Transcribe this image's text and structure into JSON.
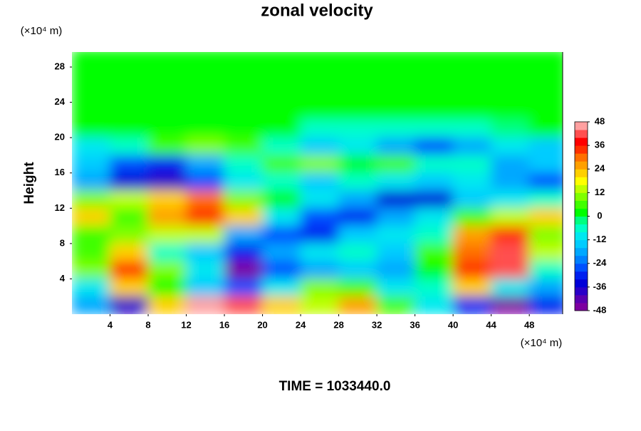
{
  "chart_data": {
    "type": "heatmap",
    "title": "zonal velocity",
    "y_unit": "(×10⁴ m)",
    "x_unit": "(×10⁴ m)",
    "ylabel": "Height",
    "footer": "TIME = 1033440.0",
    "x": [
      2,
      6,
      10,
      14,
      18,
      22,
      26,
      30,
      34,
      38,
      42,
      46,
      50
    ],
    "y": [
      29,
      27,
      25,
      23,
      21,
      19,
      17,
      15,
      13,
      11,
      9,
      7,
      5,
      3,
      1
    ],
    "z": [
      [
        0,
        0,
        0,
        0,
        0,
        0,
        0,
        0,
        0,
        0,
        0,
        0,
        0
      ],
      [
        0,
        0,
        0,
        0,
        0,
        0,
        0,
        0,
        0,
        0,
        0,
        0,
        0
      ],
      [
        0,
        0,
        0,
        0,
        0,
        0,
        0,
        0,
        0,
        0,
        0,
        0,
        0
      ],
      [
        0,
        0,
        0,
        0,
        0,
        0,
        0,
        0,
        0,
        0,
        0,
        0,
        0
      ],
      [
        2,
        2,
        2,
        2,
        2,
        0,
        -5,
        -5,
        -5,
        -8,
        -8,
        -3,
        0
      ],
      [
        -10,
        -5,
        5,
        10,
        5,
        -5,
        -15,
        -10,
        -20,
        -28,
        -20,
        -10,
        -15
      ],
      [
        -15,
        -25,
        -30,
        -20,
        -5,
        5,
        10,
        0,
        5,
        -5,
        -5,
        -20,
        -15
      ],
      [
        -20,
        -35,
        -38,
        -25,
        -10,
        -5,
        -15,
        -5,
        -10,
        -15,
        -10,
        -20,
        -25
      ],
      [
        10,
        15,
        20,
        30,
        10,
        0,
        -10,
        -20,
        -35,
        -35,
        -15,
        -10,
        -5
      ],
      [
        20,
        5,
        25,
        35,
        20,
        -10,
        -25,
        -30,
        -20,
        -10,
        5,
        15,
        20
      ],
      [
        5,
        10,
        15,
        15,
        -20,
        -25,
        -30,
        -15,
        -10,
        -5,
        25,
        35,
        10
      ],
      [
        5,
        20,
        -5,
        -15,
        -30,
        -20,
        -10,
        -5,
        -15,
        5,
        30,
        40,
        15
      ],
      [
        10,
        35,
        10,
        -10,
        -45,
        -25,
        -20,
        -15,
        -20,
        0,
        35,
        40,
        -5
      ],
      [
        -10,
        20,
        0,
        -15,
        -25,
        -10,
        10,
        5,
        -10,
        -5,
        20,
        -10,
        -20
      ],
      [
        -20,
        -40,
        20,
        45,
        40,
        20,
        15,
        25,
        5,
        -10,
        -30,
        -48,
        -30
      ]
    ],
    "xlim": [
      0,
      51.5
    ],
    "ylim": [
      0,
      29.7
    ],
    "xticks": [
      4,
      8,
      12,
      16,
      20,
      24,
      28,
      32,
      36,
      40,
      44,
      48
    ],
    "yticks": [
      4,
      8,
      12,
      16,
      20,
      24,
      28
    ],
    "levels": [
      -48,
      -44,
      -40,
      -36,
      -32,
      -28,
      -24,
      -20,
      -16,
      -12,
      -8,
      -4,
      0,
      4,
      8,
      12,
      16,
      20,
      24,
      28,
      32,
      36,
      40,
      44,
      48
    ],
    "colors": [
      "#7d00a0",
      "#5a00b0",
      "#2a00c8",
      "#0000d8",
      "#0020f0",
      "#0050ff",
      "#0080ff",
      "#00a8ff",
      "#00ccff",
      "#00e8f0",
      "#00ffc8",
      "#00ff80",
      "#00ff00",
      "#40ff00",
      "#80ff00",
      "#c0ff00",
      "#ffff00",
      "#ffd000",
      "#ffa000",
      "#ff7000",
      "#ff3000",
      "#ff0000",
      "#ff5050",
      "#ffa0a0"
    ],
    "cticks": [
      -48,
      -36,
      -24,
      -12,
      0,
      12,
      24,
      36,
      48
    ]
  }
}
